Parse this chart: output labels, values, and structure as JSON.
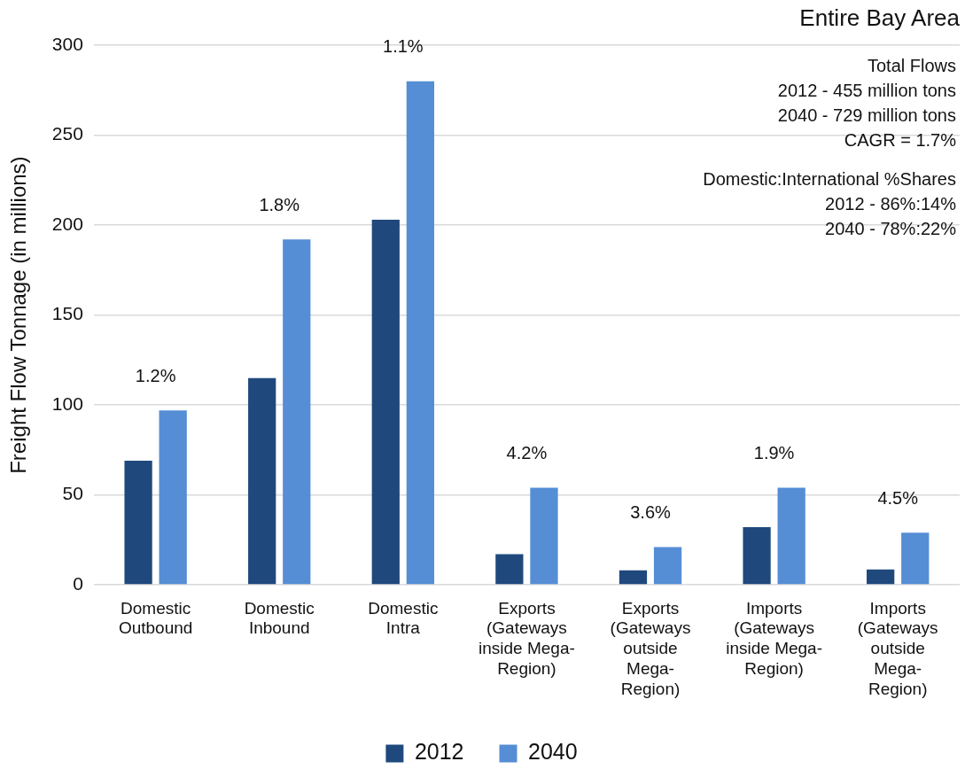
{
  "chart_data": {
    "type": "bar",
    "title": "Entire Bay Area",
    "ylabel": "Freight Flow Tonnage (in millions)",
    "categories": [
      "Domestic Outbound",
      "Domestic Inbound",
      "Domestic Intra",
      "Exports (Gateways inside Mega-Region)",
      "Exports (Gateways outside Mega-Region)",
      "Imports (Gateways inside Mega-Region)",
      "Imports (Gateways outside Mega-Region)"
    ],
    "series": [
      {
        "name": "2012",
        "color": "#1f497d",
        "values": [
          69,
          115,
          203,
          17,
          8,
          32,
          8.5
        ]
      },
      {
        "name": "2040",
        "color": "#558ed5",
        "values": [
          97,
          192,
          280,
          54,
          21,
          54,
          29
        ]
      }
    ],
    "ylim": [
      0,
      300
    ],
    "yticks": [
      0,
      50,
      100,
      150,
      200,
      250,
      300
    ],
    "grid": "y",
    "legend": "bottom",
    "annotations": [
      "1.2%",
      "1.8%",
      "1.1%",
      "4.2%",
      "3.6%",
      "1.9%",
      "4.5%",
      "Total Flows\n2012 - 455 million tons\n2040 - 729 million tons\nCAGR = 1.7%",
      "Domestic:International %Shares\n2012 - 86%:14%\n2040 - 78%:22%"
    ]
  }
}
